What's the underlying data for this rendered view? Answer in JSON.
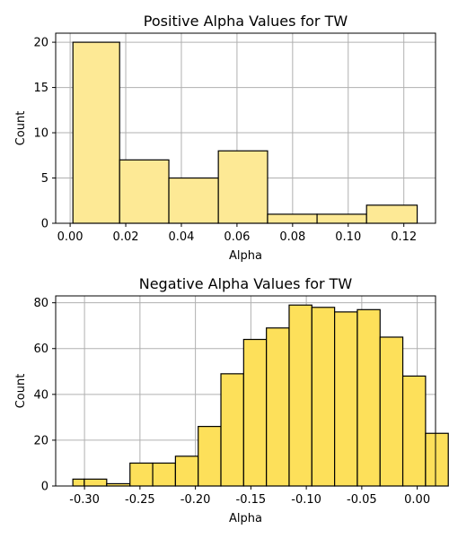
{
  "chart_data": [
    {
      "type": "bar",
      "title": "Positive Alpha Values for TW",
      "xlabel": "Alpha",
      "ylabel": "Count",
      "xlim": [
        -0.0052,
        0.1314
      ],
      "ylim": [
        0,
        21
      ],
      "xticks": [
        "0.00",
        "0.02",
        "0.04",
        "0.06",
        "0.08",
        "0.10",
        "0.12"
      ],
      "yticks": [
        "0",
        "5",
        "10",
        "15",
        "20"
      ],
      "grid": true,
      "bar_color": "#fde995",
      "bins": [
        {
          "x0": 0.001,
          "x1": 0.0178,
          "value": 20
        },
        {
          "x0": 0.0178,
          "x1": 0.0355,
          "value": 7
        },
        {
          "x0": 0.0355,
          "x1": 0.0533,
          "value": 5
        },
        {
          "x0": 0.0533,
          "x1": 0.071,
          "value": 8
        },
        {
          "x0": 0.071,
          "x1": 0.0888,
          "value": 1
        },
        {
          "x0": 0.0888,
          "x1": 0.1066,
          "value": 1
        },
        {
          "x0": 0.1066,
          "x1": 0.1248,
          "value": 2
        }
      ]
    },
    {
      "type": "bar",
      "title": "Negative Alpha Values for TW",
      "xlabel": "Alpha",
      "ylabel": "Count",
      "xlim": [
        -0.326,
        0.0165
      ],
      "ylim": [
        0,
        83
      ],
      "xticks": [
        "-0.30",
        "-0.25",
        "-0.20",
        "-0.15",
        "-0.10",
        "-0.05",
        "0.00"
      ],
      "yticks": [
        "0",
        "20",
        "40",
        "60",
        "80"
      ],
      "grid": true,
      "bar_color": "#fde05a",
      "bins": [
        {
          "x0": -0.3105,
          "x1": -0.3002,
          "value": 3
        },
        {
          "x0": -0.3002,
          "x1": -0.28,
          "value": 3
        },
        {
          "x0": -0.28,
          "x1": -0.259,
          "value": 1
        },
        {
          "x0": -0.259,
          "x1": -0.2385,
          "value": 10
        },
        {
          "x0": -0.2385,
          "x1": -0.218,
          "value": 10
        },
        {
          "x0": -0.218,
          "x1": -0.1975,
          "value": 13
        },
        {
          "x0": -0.1975,
          "x1": -0.177,
          "value": 26
        },
        {
          "x0": -0.177,
          "x1": -0.1565,
          "value": 49
        },
        {
          "x0": -0.1565,
          "x1": -0.136,
          "value": 64
        },
        {
          "x0": -0.136,
          "x1": -0.1155,
          "value": 69
        },
        {
          "x0": -0.1155,
          "x1": -0.095,
          "value": 79
        },
        {
          "x0": -0.095,
          "x1": -0.0745,
          "value": 78
        },
        {
          "x0": -0.0745,
          "x1": -0.054,
          "value": 76
        },
        {
          "x0": -0.054,
          "x1": -0.0335,
          "value": 77
        },
        {
          "x0": -0.0335,
          "x1": -0.013,
          "value": 65
        },
        {
          "x0": -0.013,
          "x1": 0.0075,
          "value": 48
        },
        {
          "x0": 0.0075,
          "x1": 0.028,
          "value": 23
        }
      ]
    }
  ]
}
